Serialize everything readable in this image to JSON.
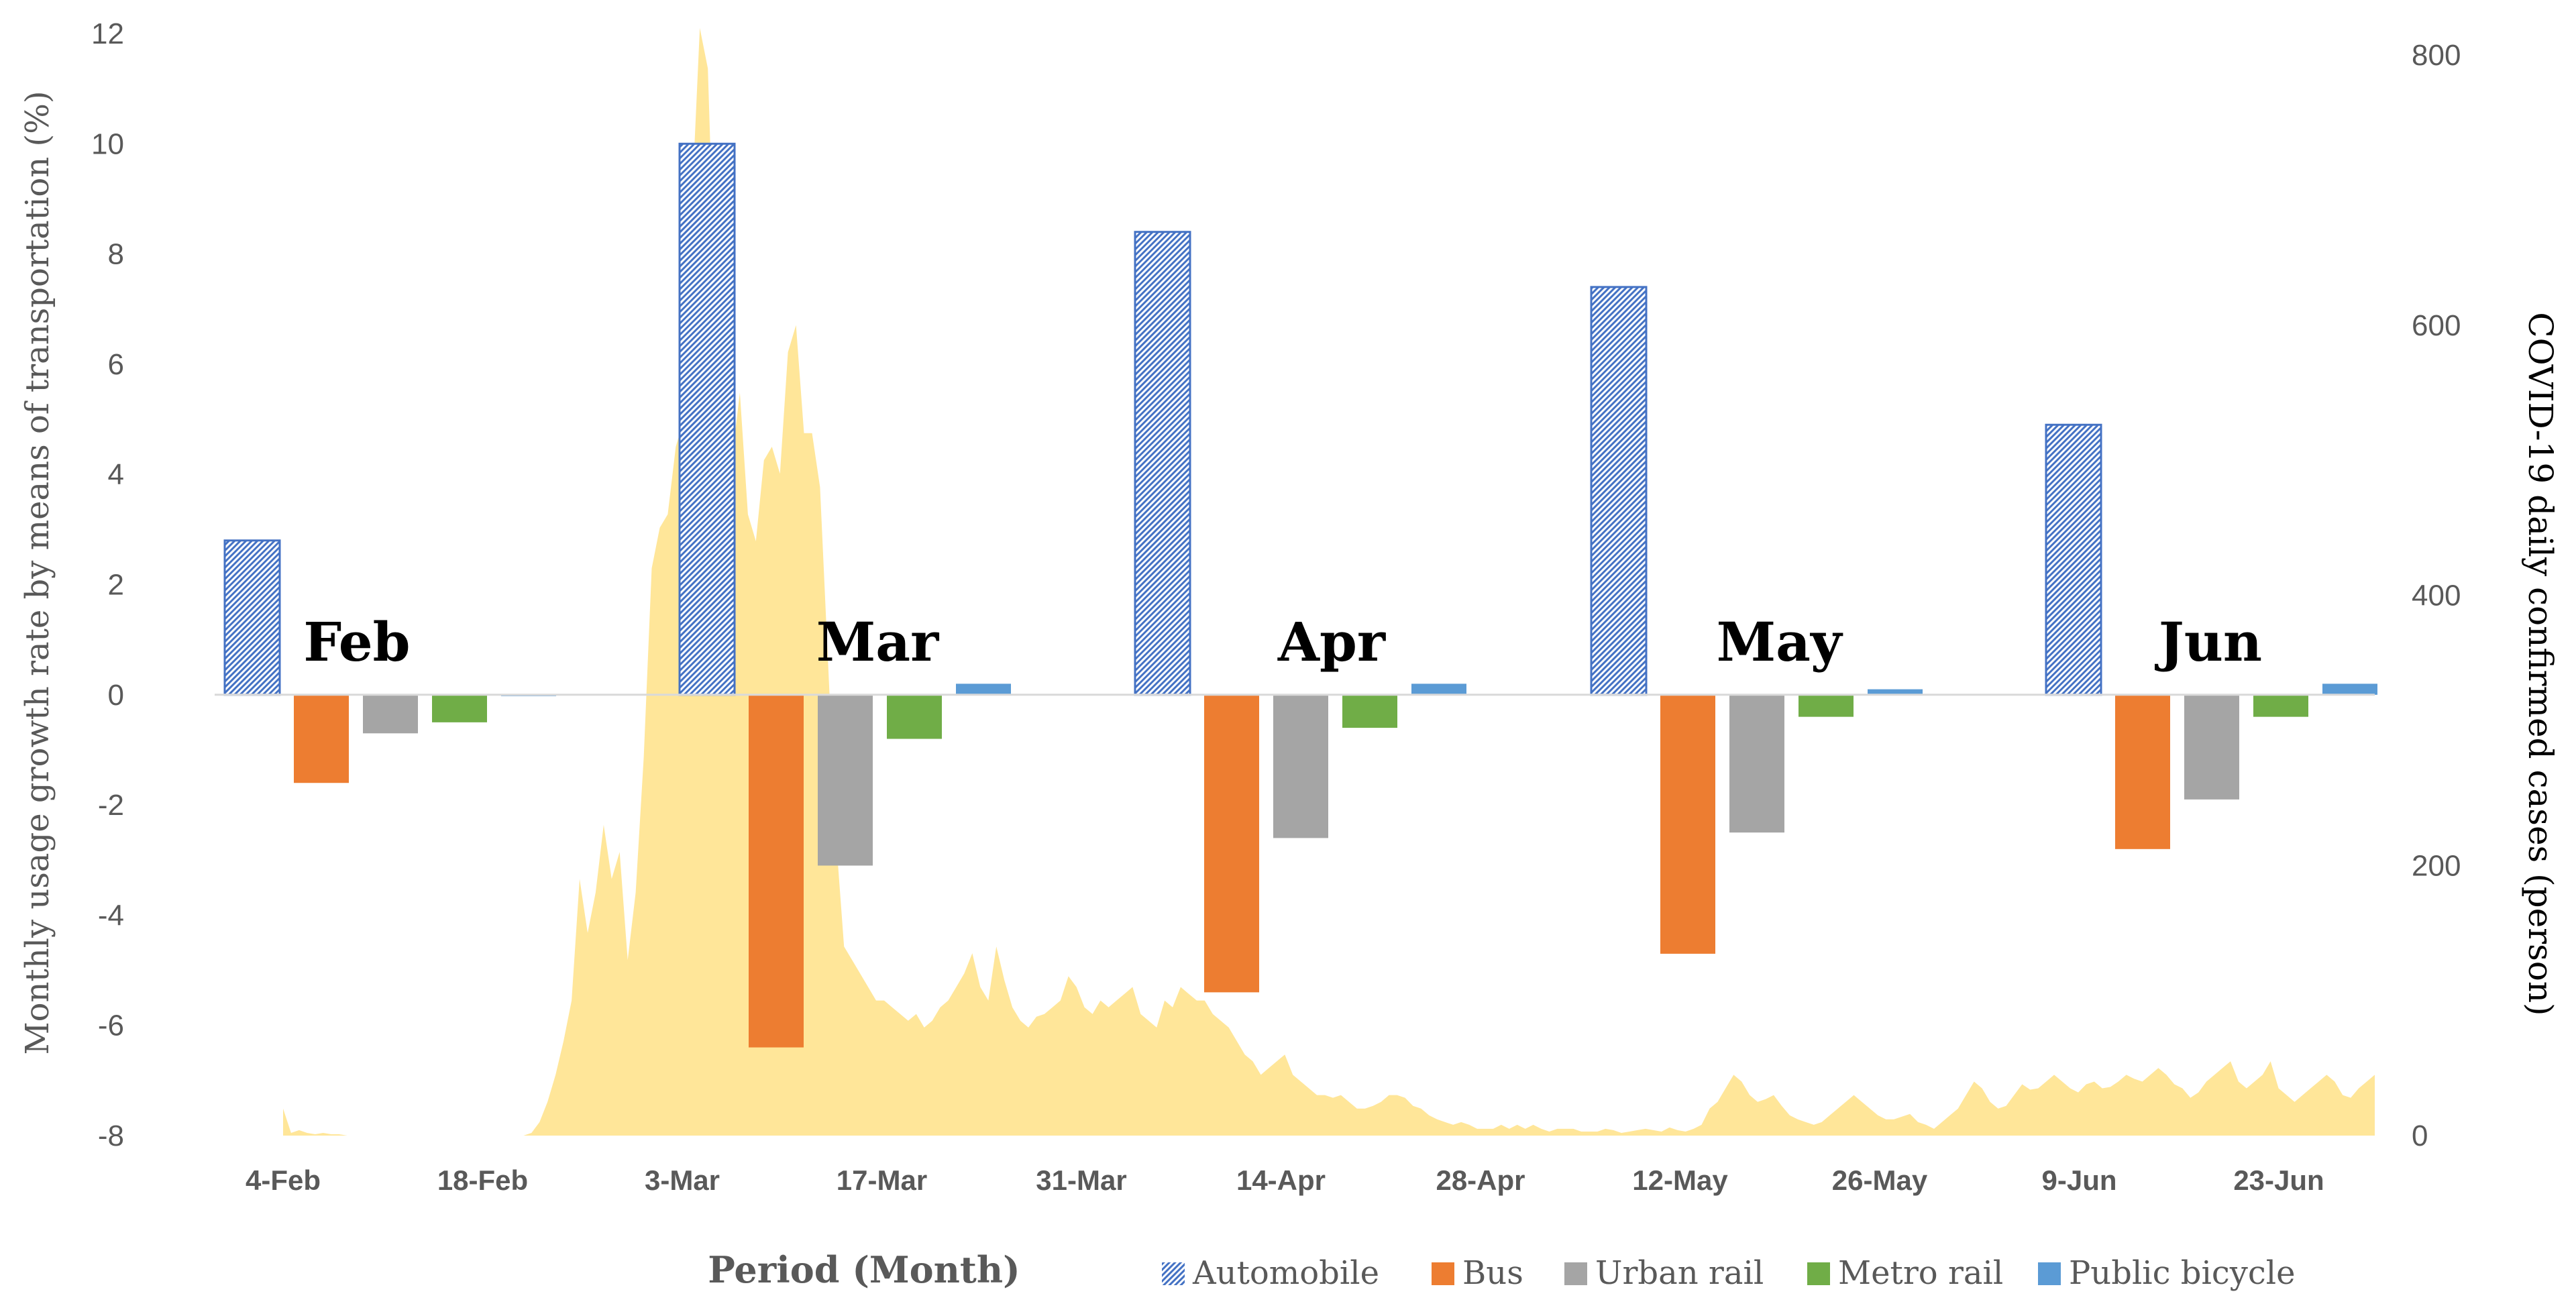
{
  "chart_data": {
    "type": "bar",
    "categories": [
      "Feb",
      "Mar",
      "Apr",
      "May",
      "Jun"
    ],
    "series": [
      {
        "name": "Automobile",
        "color": "#4472c4",
        "pattern": "hatched",
        "values": [
          2.8,
          10.0,
          8.4,
          7.4,
          4.9
        ]
      },
      {
        "name": "Bus",
        "color": "#ed7d31",
        "values": [
          -1.6,
          -6.4,
          -5.4,
          -4.7,
          -2.8
        ]
      },
      {
        "name": "Urban rail",
        "color": "#a5a5a5",
        "values": [
          -0.7,
          -3.1,
          -2.6,
          -2.5,
          -1.9
        ]
      },
      {
        "name": "Metro rail",
        "color": "#70ad47",
        "values": [
          -0.5,
          -0.8,
          -0.6,
          -0.4,
          -0.4
        ]
      },
      {
        "name": "Public bicycle",
        "color": "#5b9bd5",
        "values": [
          0.0,
          0.2,
          0.2,
          0.1,
          0.2
        ]
      }
    ],
    "area_series": {
      "name": "COVID-19 daily confirmed cases",
      "color": "#ffe699",
      "axis": "secondary",
      "values": [
        20,
        2,
        4,
        2,
        1,
        2,
        1,
        1,
        0,
        0,
        0,
        0,
        0,
        0,
        0,
        0,
        0,
        0,
        0,
        0,
        0,
        0,
        0,
        0,
        0,
        0,
        0,
        0,
        0,
        0,
        0,
        2,
        10,
        25,
        45,
        70,
        100,
        190,
        150,
        180,
        230,
        190,
        210,
        130,
        180,
        280,
        420,
        450,
        460,
        510,
        530,
        690,
        820,
        790,
        600,
        560,
        500,
        550,
        460,
        440,
        500,
        510,
        490,
        580,
        600,
        520,
        520,
        480,
        350,
        220,
        140,
        130,
        120,
        110,
        100,
        100,
        95,
        90,
        85,
        90,
        80,
        85,
        95,
        100,
        110,
        120,
        135,
        110,
        100,
        140,
        115,
        95,
        85,
        80,
        88,
        90,
        95,
        100,
        118,
        110,
        95,
        90,
        100,
        95,
        100,
        105,
        110,
        90,
        85,
        80,
        100,
        95,
        110,
        105,
        100,
        100,
        90,
        85,
        80,
        70,
        60,
        55,
        45,
        50,
        55,
        60,
        45,
        40,
        35,
        30,
        30,
        28,
        30,
        25,
        20,
        20,
        22,
        25,
        30,
        30,
        28,
        22,
        20,
        15,
        12,
        10,
        8,
        10,
        8,
        5,
        5,
        5,
        8,
        5,
        8,
        5,
        8,
        5,
        3,
        5,
        5,
        5,
        3,
        3,
        3,
        5,
        4,
        2,
        3,
        4,
        5,
        4,
        3,
        6,
        4,
        3,
        5,
        8,
        20,
        25,
        35,
        45,
        40,
        30,
        25,
        27,
        30,
        22,
        15,
        12,
        10,
        8,
        10,
        15,
        20,
        25,
        30,
        25,
        20,
        15,
        12,
        12,
        14,
        16,
        10,
        8,
        5,
        10,
        15,
        20,
        30,
        40,
        35,
        25,
        20,
        22,
        30,
        38,
        34,
        35,
        40,
        45,
        40,
        35,
        32,
        38,
        40,
        35,
        36,
        40,
        45,
        42,
        40,
        45,
        50,
        45,
        38,
        35,
        28,
        32,
        40,
        45,
        50,
        55,
        40,
        35,
        40,
        45,
        55,
        35,
        30,
        25,
        30,
        35,
        40,
        45,
        40,
        30,
        28,
        35,
        40,
        45
      ]
    },
    "ylabel": "Monthly usage growth rate by means of transportation (%)",
    "ylabel_right": "COVID-19 daily confirmed cases (person)",
    "xlabel": "Period (Month)",
    "ylim": [
      -8,
      12
    ],
    "ylim_right": [
      0,
      800
    ],
    "yticks": [
      "12",
      "10",
      "8",
      "6",
      "4",
      "2",
      "0",
      "-2",
      "-4",
      "-6",
      "-8"
    ],
    "yticks_right": [
      "800",
      "600",
      "400",
      "200",
      "0"
    ],
    "xticks": [
      "4-Feb",
      "18-Feb",
      "3-Mar",
      "17-Mar",
      "31-Mar",
      "14-Apr",
      "28-Apr",
      "12-May",
      "26-May",
      "9-Jun",
      "23-Jun"
    ],
    "legend": [
      "Automobile",
      "Bus",
      "Urban rail",
      "Metro rail",
      "Public bicycle"
    ],
    "legend_position": "bottom-right"
  }
}
